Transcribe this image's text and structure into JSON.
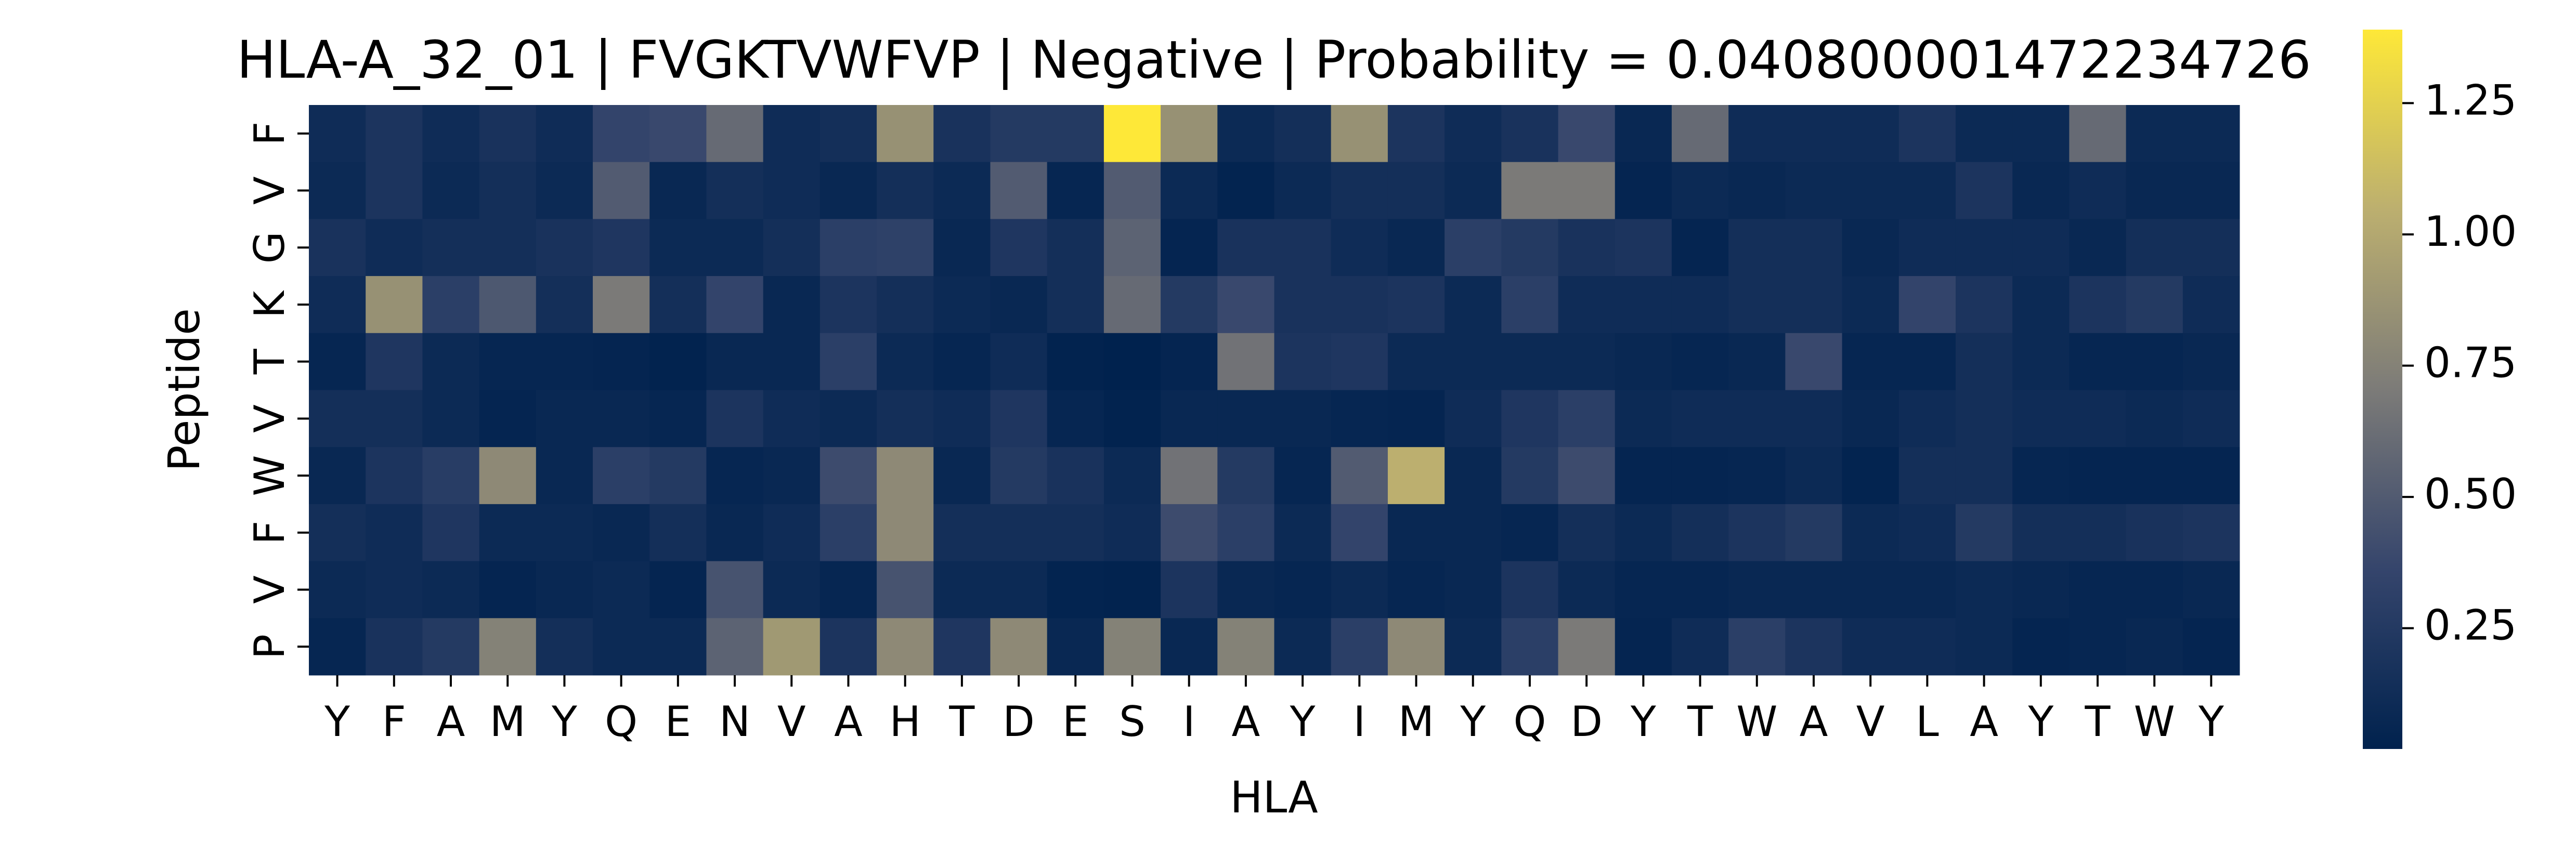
{
  "chart_data": {
    "type": "heatmap",
    "title": "HLA-A_32_01 | FVGKTVWFVP | Negative | Probability = 0.040800001472234726",
    "xlabel": "HLA",
    "ylabel": "Peptide",
    "x_categories": [
      "Y",
      "F",
      "A",
      "M",
      "Y",
      "Q",
      "E",
      "N",
      "V",
      "A",
      "H",
      "T",
      "D",
      "E",
      "S",
      "I",
      "A",
      "Y",
      "I",
      "M",
      "Y",
      "Q",
      "D",
      "Y",
      "T",
      "W",
      "A",
      "V",
      "L",
      "A",
      "Y",
      "T",
      "W",
      "Y"
    ],
    "y_categories": [
      "F",
      "V",
      "G",
      "K",
      "T",
      "V",
      "W",
      "F",
      "V",
      "P"
    ],
    "values": [
      [
        0.12,
        0.2,
        0.12,
        0.18,
        0.12,
        0.35,
        0.38,
        0.6,
        0.12,
        0.15,
        0.85,
        0.18,
        0.25,
        0.25,
        1.39,
        0.85,
        0.1,
        0.15,
        0.85,
        0.2,
        0.12,
        0.18,
        0.38,
        0.08,
        0.6,
        0.12,
        0.12,
        0.12,
        0.2,
        0.1,
        0.1,
        0.6,
        0.1,
        0.1
      ],
      [
        0.1,
        0.2,
        0.1,
        0.15,
        0.1,
        0.5,
        0.08,
        0.15,
        0.12,
        0.08,
        0.15,
        0.1,
        0.5,
        0.06,
        0.5,
        0.1,
        0.04,
        0.1,
        0.15,
        0.15,
        0.1,
        0.7,
        0.7,
        0.05,
        0.1,
        0.08,
        0.1,
        0.1,
        0.1,
        0.2,
        0.08,
        0.12,
        0.08,
        0.08
      ],
      [
        0.18,
        0.12,
        0.15,
        0.15,
        0.18,
        0.22,
        0.1,
        0.1,
        0.15,
        0.3,
        0.32,
        0.08,
        0.22,
        0.15,
        0.55,
        0.05,
        0.18,
        0.18,
        0.12,
        0.08,
        0.3,
        0.25,
        0.18,
        0.2,
        0.05,
        0.15,
        0.15,
        0.08,
        0.12,
        0.12,
        0.12,
        0.08,
        0.15,
        0.15
      ],
      [
        0.12,
        0.85,
        0.3,
        0.48,
        0.15,
        0.7,
        0.15,
        0.35,
        0.08,
        0.2,
        0.15,
        0.1,
        0.08,
        0.15,
        0.6,
        0.25,
        0.38,
        0.18,
        0.18,
        0.2,
        0.1,
        0.3,
        0.12,
        0.12,
        0.12,
        0.15,
        0.15,
        0.1,
        0.35,
        0.2,
        0.1,
        0.2,
        0.25,
        0.12
      ],
      [
        0.06,
        0.22,
        0.1,
        0.06,
        0.06,
        0.05,
        0.03,
        0.08,
        0.08,
        0.3,
        0.1,
        0.06,
        0.12,
        0.03,
        0.02,
        0.05,
        0.65,
        0.2,
        0.22,
        0.1,
        0.1,
        0.1,
        0.1,
        0.08,
        0.06,
        0.08,
        0.38,
        0.06,
        0.06,
        0.15,
        0.1,
        0.06,
        0.06,
        0.08
      ],
      [
        0.15,
        0.15,
        0.1,
        0.05,
        0.08,
        0.08,
        0.06,
        0.2,
        0.12,
        0.1,
        0.15,
        0.12,
        0.22,
        0.06,
        0.03,
        0.08,
        0.08,
        0.08,
        0.06,
        0.05,
        0.12,
        0.22,
        0.3,
        0.1,
        0.12,
        0.12,
        0.12,
        0.08,
        0.12,
        0.15,
        0.12,
        0.12,
        0.1,
        0.12
      ],
      [
        0.08,
        0.2,
        0.28,
        0.8,
        0.08,
        0.3,
        0.25,
        0.06,
        0.08,
        0.4,
        0.8,
        0.08,
        0.25,
        0.18,
        0.1,
        0.65,
        0.25,
        0.06,
        0.5,
        1.05,
        0.08,
        0.25,
        0.4,
        0.05,
        0.05,
        0.06,
        0.1,
        0.04,
        0.15,
        0.15,
        0.06,
        0.05,
        0.05,
        0.05
      ],
      [
        0.15,
        0.12,
        0.22,
        0.1,
        0.1,
        0.08,
        0.15,
        0.08,
        0.12,
        0.3,
        0.8,
        0.15,
        0.15,
        0.15,
        0.12,
        0.4,
        0.3,
        0.1,
        0.35,
        0.08,
        0.08,
        0.06,
        0.15,
        0.1,
        0.15,
        0.2,
        0.25,
        0.1,
        0.12,
        0.25,
        0.15,
        0.15,
        0.18,
        0.2
      ],
      [
        0.1,
        0.12,
        0.1,
        0.05,
        0.08,
        0.1,
        0.05,
        0.45,
        0.1,
        0.06,
        0.45,
        0.1,
        0.1,
        0.04,
        0.03,
        0.2,
        0.08,
        0.06,
        0.1,
        0.06,
        0.08,
        0.2,
        0.1,
        0.06,
        0.06,
        0.08,
        0.08,
        0.08,
        0.08,
        0.1,
        0.08,
        0.06,
        0.06,
        0.08
      ],
      [
        0.06,
        0.18,
        0.25,
        0.75,
        0.15,
        0.1,
        0.1,
        0.55,
        0.9,
        0.2,
        0.8,
        0.22,
        0.8,
        0.08,
        0.75,
        0.08,
        0.75,
        0.1,
        0.3,
        0.8,
        0.1,
        0.3,
        0.7,
        0.05,
        0.12,
        0.3,
        0.2,
        0.12,
        0.12,
        0.1,
        0.05,
        0.06,
        0.08,
        0.05
      ]
    ],
    "colormap": "cividis",
    "clim": [
      0.02,
      1.39
    ],
    "cticks": [
      0.25,
      {
        "value": 0.5,
        "label": "0.50"
      },
      0.75,
      {
        "value": 1,
        "label": "1.00"
      },
      1.25
    ]
  }
}
